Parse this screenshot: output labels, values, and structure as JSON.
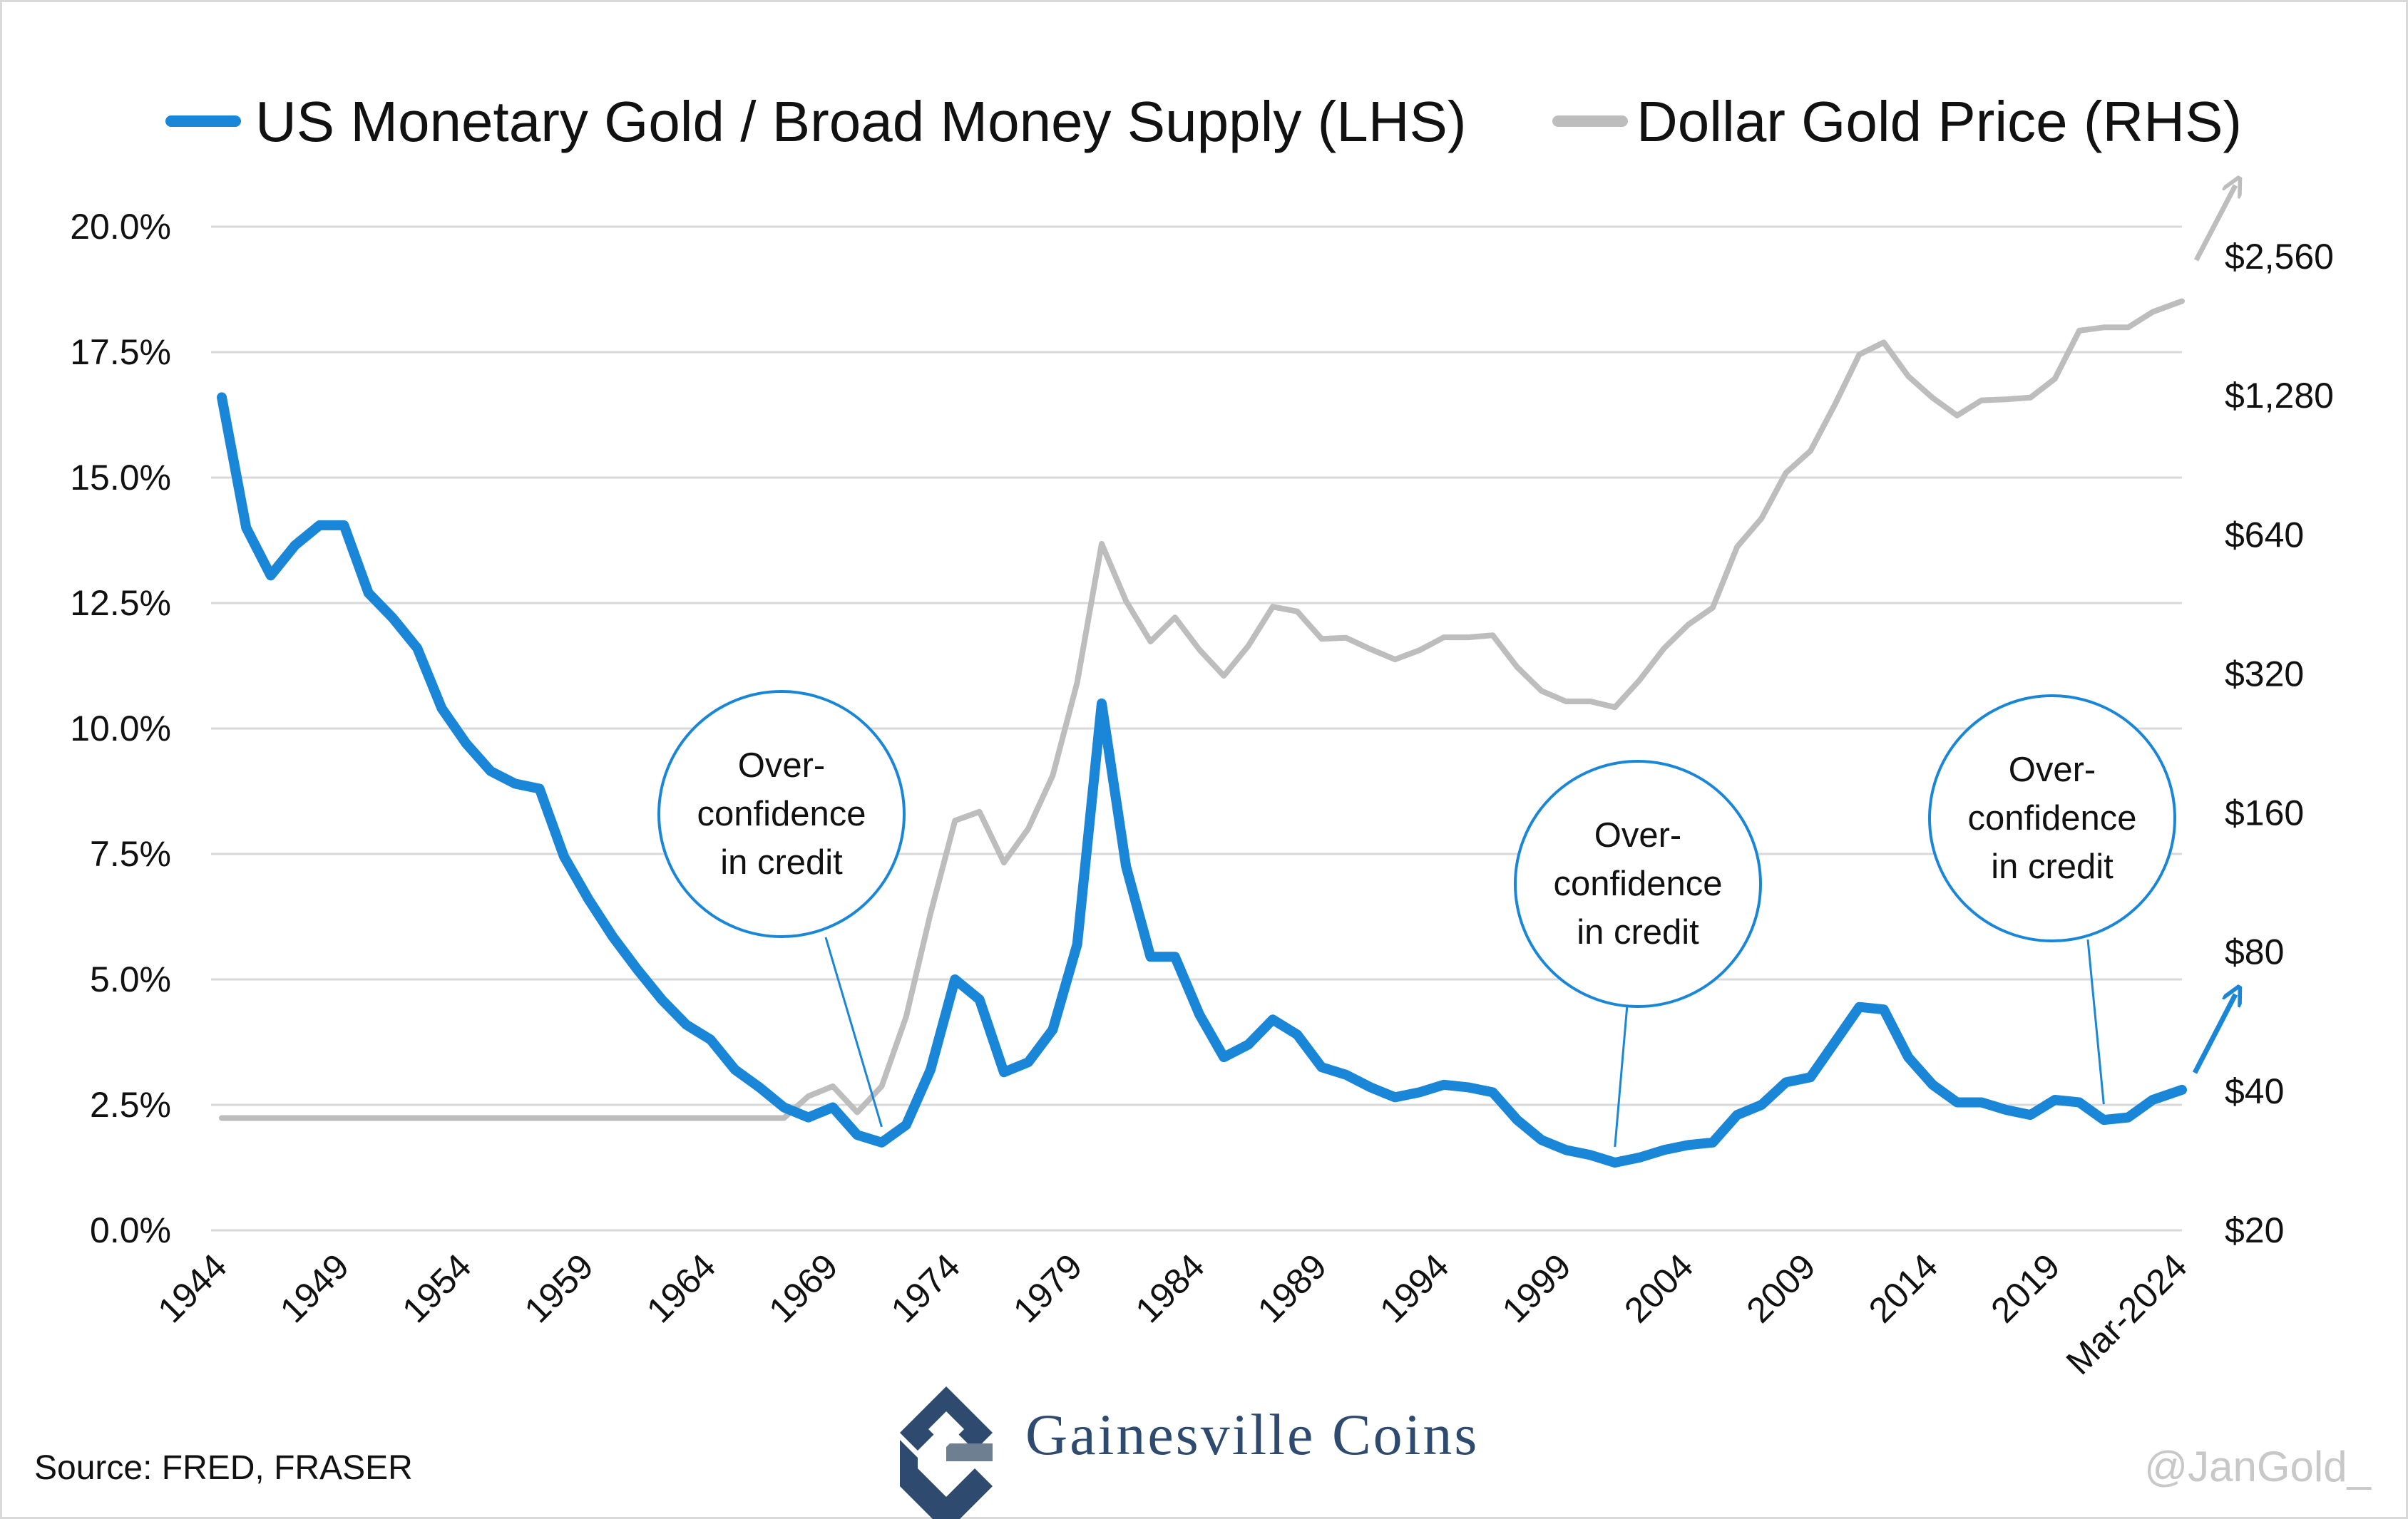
{
  "colors": {
    "gold_money": "#1a86d8",
    "gold_price": "#bdbdbd",
    "grid": "#d9d9d9",
    "brand": "#2e4a6e"
  },
  "chart_data": {
    "type": "line",
    "title": "",
    "legend": [
      {
        "label": "US Monetary Gold / Broad Money Supply (LHS)",
        "color": "#1a86d8"
      },
      {
        "label": "Dollar Gold Price (RHS)",
        "color": "#bdbdbd"
      }
    ],
    "legend_position": "top",
    "x_ticks": [
      "1944",
      "1949",
      "1954",
      "1959",
      "1964",
      "1969",
      "1974",
      "1979",
      "1984",
      "1989",
      "1994",
      "1999",
      "2004",
      "2009",
      "2014",
      "2019",
      "Mar-2024"
    ],
    "y_left": {
      "ticks": [
        "0.0%",
        "2.5%",
        "5.0%",
        "7.5%",
        "10.0%",
        "12.5%",
        "15.0%",
        "17.5%",
        "20.0%"
      ],
      "range": [
        0,
        20
      ]
    },
    "y_right": {
      "ticks": [
        "$20",
        "$40",
        "$80",
        "$160",
        "$320",
        "$640",
        "$1,280",
        "$2,560"
      ],
      "scale": "log2",
      "range": [
        20,
        2560
      ]
    },
    "series": [
      {
        "name": "US Monetary Gold / Broad Money Supply (LHS)",
        "axis": "left",
        "x": [
          1944,
          1945,
          1946,
          1947,
          1948,
          1949,
          1950,
          1951,
          1952,
          1953,
          1954,
          1955,
          1956,
          1957,
          1958,
          1959,
          1960,
          1961,
          1962,
          1963,
          1964,
          1965,
          1966,
          1967,
          1968,
          1969,
          1970,
          1971,
          1972,
          1973,
          1974,
          1975,
          1976,
          1977,
          1978,
          1979,
          1980,
          1981,
          1982,
          1983,
          1984,
          1985,
          1986,
          1987,
          1988,
          1989,
          1990,
          1991,
          1992,
          1993,
          1994,
          1995,
          1996,
          1997,
          1998,
          1999,
          2000,
          2001,
          2002,
          2003,
          2004,
          2005,
          2006,
          2007,
          2008,
          2009,
          2010,
          2011,
          2012,
          2013,
          2014,
          2015,
          2016,
          2017,
          2018,
          2019,
          2020,
          2021,
          2022,
          2023,
          2024.2
        ],
        "values": [
          16.6,
          14.0,
          13.05,
          13.65,
          14.05,
          14.05,
          12.7,
          12.2,
          11.6,
          10.4,
          9.7,
          9.15,
          8.9,
          8.8,
          7.45,
          6.6,
          5.85,
          5.2,
          4.6,
          4.1,
          3.8,
          3.2,
          2.85,
          2.45,
          2.25,
          2.45,
          1.9,
          1.75,
          2.1,
          3.2,
          5.0,
          4.6,
          3.15,
          3.35,
          4.0,
          5.7,
          10.5,
          7.25,
          5.45,
          5.45,
          4.3,
          3.45,
          3.7,
          4.2,
          3.9,
          3.25,
          3.1,
          2.85,
          2.65,
          2.75,
          2.9,
          2.85,
          2.75,
          2.2,
          1.8,
          1.6,
          1.5,
          1.35,
          1.45,
          1.6,
          1.7,
          1.75,
          2.3,
          2.5,
          2.95,
          3.05,
          3.75,
          4.45,
          4.4,
          3.45,
          2.9,
          2.55,
          2.55,
          2.4,
          2.3,
          2.6,
          2.55,
          2.2,
          2.25,
          2.6,
          2.8
        ]
      },
      {
        "name": "Dollar Gold Price (RHS)",
        "axis": "right",
        "x": [
          1944,
          1945,
          1946,
          1947,
          1948,
          1949,
          1950,
          1951,
          1952,
          1953,
          1954,
          1955,
          1956,
          1957,
          1958,
          1959,
          1960,
          1961,
          1962,
          1963,
          1964,
          1965,
          1966,
          1967,
          1968,
          1969,
          1970,
          1971,
          1972,
          1973,
          1974,
          1975,
          1976,
          1977,
          1978,
          1979,
          1980,
          1981,
          1982,
          1983,
          1984,
          1985,
          1986,
          1987,
          1988,
          1989,
          1990,
          1991,
          1992,
          1993,
          1994,
          1995,
          1996,
          1997,
          1998,
          1999,
          2000,
          2001,
          2002,
          2003,
          2004,
          2005,
          2006,
          2007,
          2008,
          2009,
          2010,
          2011,
          2012,
          2013,
          2014,
          2015,
          2016,
          2017,
          2018,
          2019,
          2020,
          2021,
          2022,
          2023,
          2024.2
        ],
        "values": [
          35,
          35,
          35,
          35,
          35,
          35,
          35,
          35,
          35,
          35,
          35,
          35,
          35,
          35,
          35,
          35,
          35,
          35,
          35,
          35,
          35,
          35,
          35,
          35,
          39,
          41,
          36,
          41,
          58,
          97,
          154,
          161,
          125,
          148,
          193,
          307,
          612,
          460,
          376,
          424,
          361,
          317,
          368,
          447,
          437,
          381,
          383,
          362,
          344,
          360,
          384,
          384,
          388,
          331,
          294,
          279,
          279,
          271,
          310,
          363,
          409,
          445,
          603,
          695,
          872,
          972,
          1225,
          1572,
          1669,
          1411,
          1266,
          1160,
          1251,
          1257,
          1268,
          1393,
          1770,
          1799,
          1800,
          1943,
          2050
        ]
      }
    ],
    "annotations": [
      {
        "lines": [
          "Over-",
          "confidence",
          "in credit"
        ],
        "points_to": 1971
      },
      {
        "lines": [
          "Over-",
          "confidence",
          "in credit"
        ],
        "points_to": 2001
      },
      {
        "lines": [
          "Over-",
          "confidence",
          "in credit"
        ],
        "points_to": 2021
      }
    ],
    "trend_arrows": [
      "up (gold price, continues past chart)",
      "up (gold/money ratio, continues past chart)"
    ]
  },
  "footer": {
    "source": "Source: FRED, FRASER",
    "brand": "Gainesville Coins",
    "handle": "@JanGold_"
  }
}
